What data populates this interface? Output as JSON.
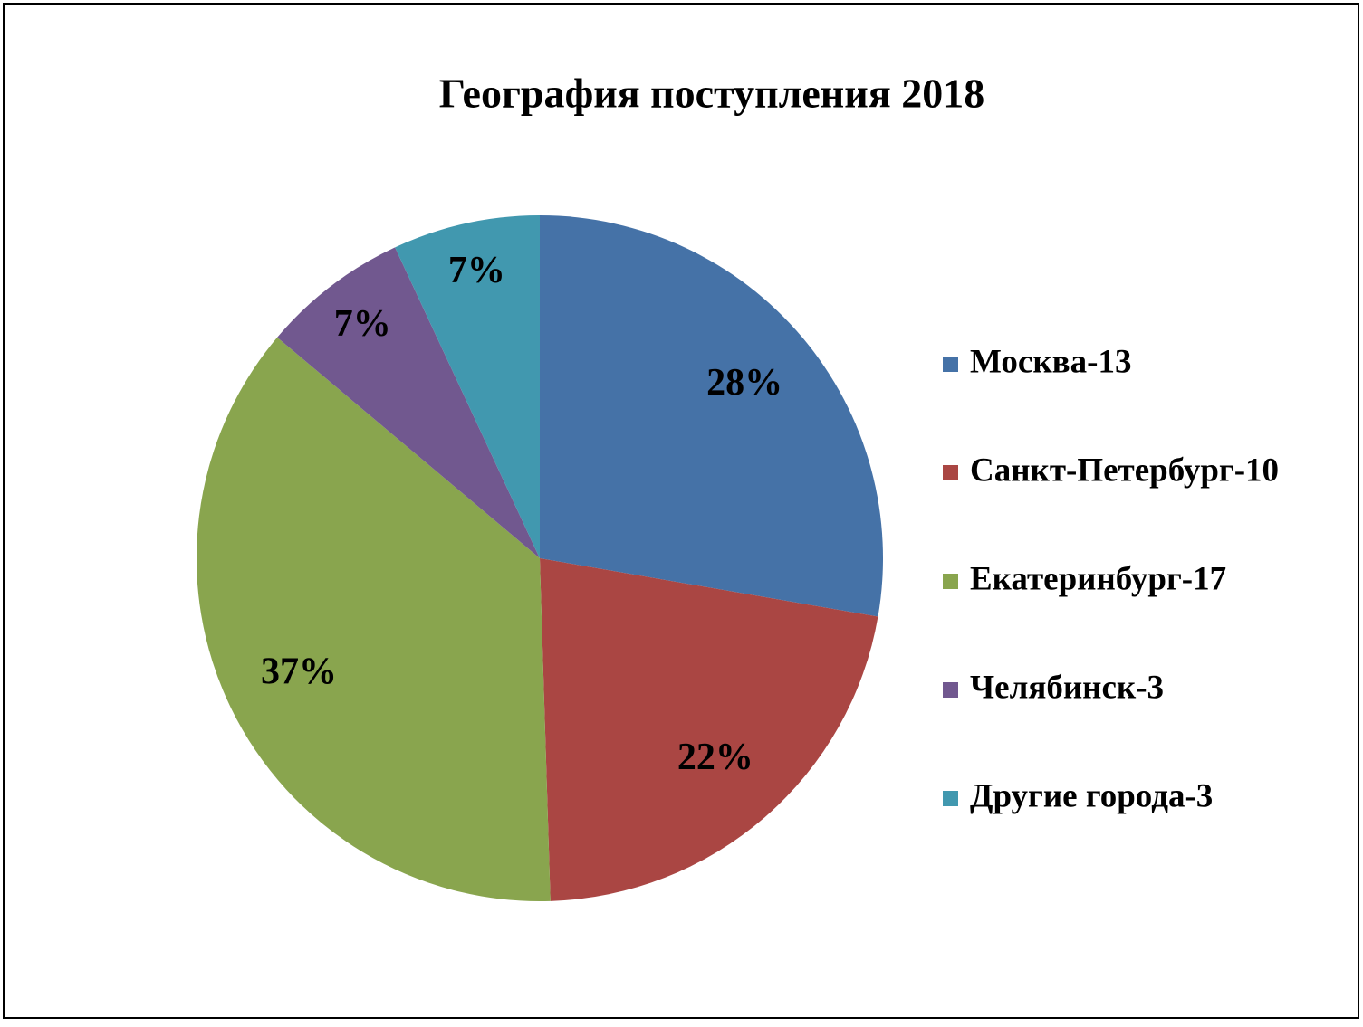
{
  "chart_data": {
    "type": "pie",
    "title": "География поступления 2018",
    "categories": [
      "Москва-13",
      "Санкт-Петербург-10",
      "Екатеринбург-17",
      "Челябинск-3",
      "Другие города-3"
    ],
    "values": [
      28,
      22,
      37,
      7,
      7
    ],
    "value_labels": [
      "28%",
      "22%",
      "37%",
      "7%",
      "7%"
    ],
    "colors": [
      "#4572a7",
      "#aa4643",
      "#89a54e",
      "#71588f",
      "#4198af"
    ],
    "legend": "right"
  }
}
